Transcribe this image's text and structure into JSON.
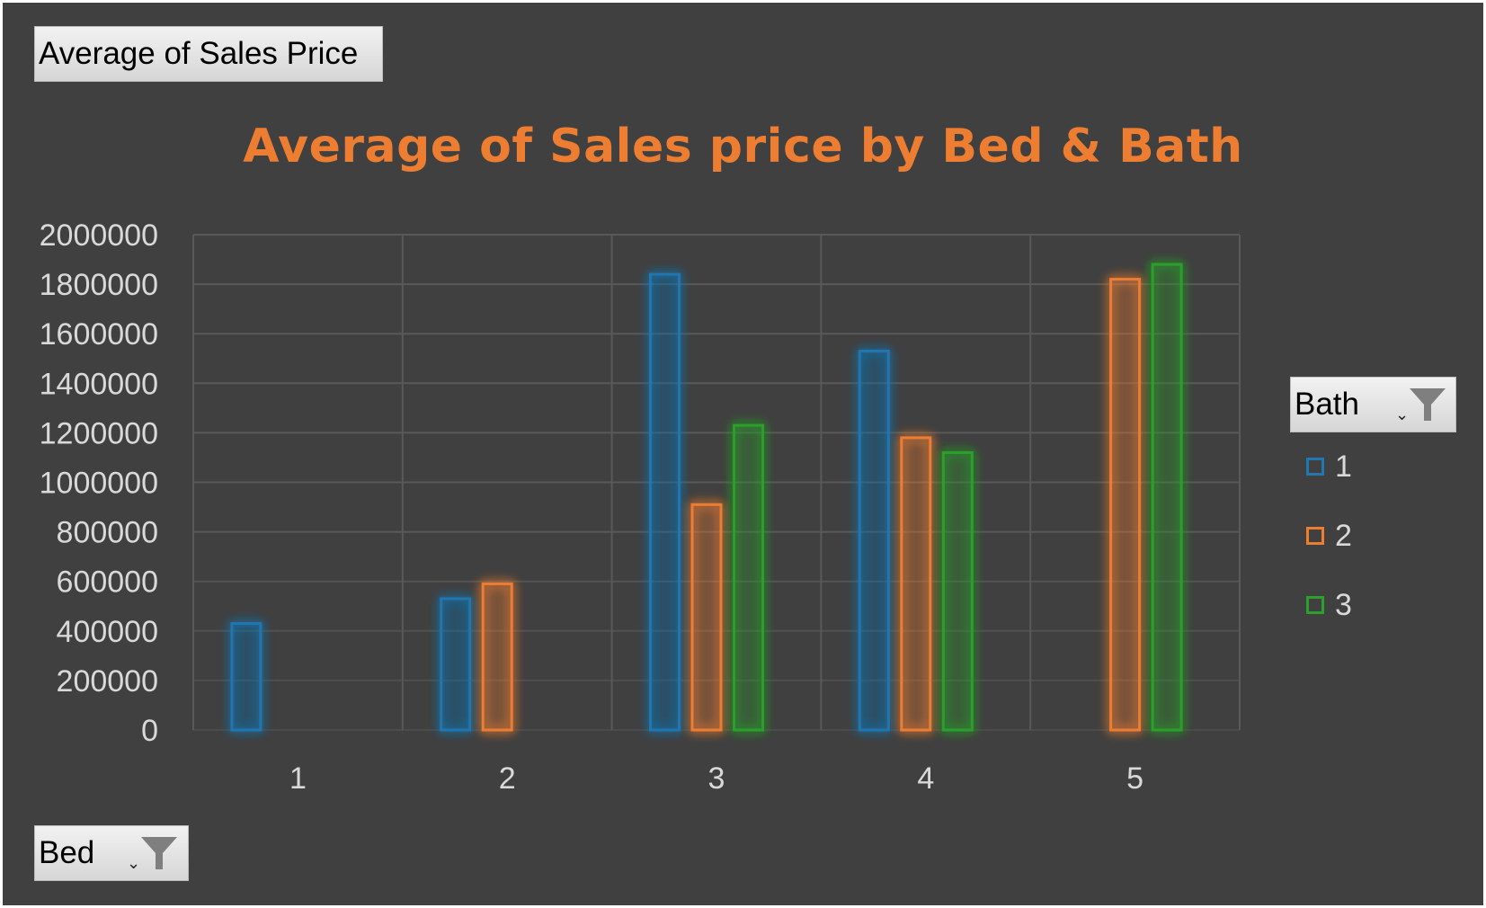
{
  "pivot": {
    "value_field": "Average  of Sales Price",
    "axis_field": "Bed",
    "legend_field": "Bath"
  },
  "icons": {
    "filter": "funnel-filter-icon",
    "dropdown": "chevron-down-icon"
  },
  "colors": {
    "background": "#404040",
    "title": "#ed7d31",
    "gridline": "#595959",
    "axis_text": "#d9d9d9",
    "series_1": "#1f77b4",
    "series_2": "#ed7d31",
    "series_3": "#2ca02c"
  },
  "chart_data": {
    "type": "bar",
    "title": "Average of Sales price by Bed & Bath",
    "xlabel": "",
    "ylabel": "",
    "categories": [
      "1",
      "2",
      "3",
      "4",
      "5"
    ],
    "series": [
      {
        "name": "1",
        "values": [
          430000,
          530000,
          1840000,
          1530000,
          null
        ]
      },
      {
        "name": "2",
        "values": [
          null,
          590000,
          910000,
          1180000,
          1820000
        ]
      },
      {
        "name": "3",
        "values": [
          null,
          null,
          1230000,
          1120000,
          1880000
        ]
      }
    ],
    "ylim": [
      0,
      2000000
    ],
    "yticks": [
      "0",
      "200000",
      "400000",
      "600000",
      "800000",
      "1000000",
      "1200000",
      "1400000",
      "1600000",
      "1800000",
      "2000000"
    ],
    "grid": true,
    "legend_position": "right",
    "legend_title": "Bath",
    "bar_style": "outlined with glow"
  }
}
